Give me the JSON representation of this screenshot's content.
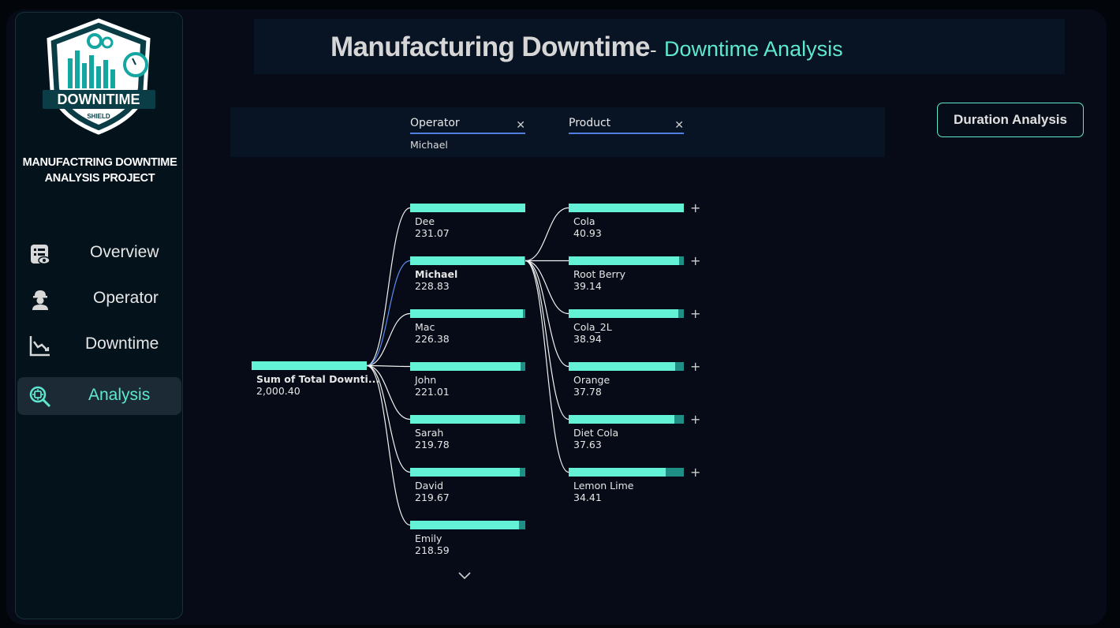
{
  "sidebar": {
    "logo": {
      "text": "DOWNITIME",
      "subtext": "SHIELD"
    },
    "project_title": "MANUFACTRING DOWNTIME\nANALYSIS PROJECT",
    "items": [
      {
        "label": "Overview",
        "icon": "report-icon",
        "active": false
      },
      {
        "label": "Operator",
        "icon": "worker-icon",
        "active": false
      },
      {
        "label": "Downtime",
        "icon": "line-chart-icon",
        "active": false
      },
      {
        "label": "Analysis",
        "icon": "analysis-search-icon",
        "active": true
      }
    ]
  },
  "header": {
    "title": "Manufacturing Downtime",
    "separator": "-",
    "subtitle": "Downtime Analysis"
  },
  "filters": {
    "operator": {
      "title": "Operator",
      "value": "Michael"
    },
    "product": {
      "title": "Product",
      "value": ""
    }
  },
  "duration_button": "Duration Analysis",
  "colors": {
    "accent": "#5ee8cf",
    "bar_fill": "#64f2d6",
    "bar_track": "#1f8f86",
    "selected_line": "#5b8ef0"
  },
  "chart_data": {
    "type": "decomposition_tree",
    "root": {
      "label": "Sum of Total Downti...",
      "value_text": "2,000.40",
      "value": 2000.4
    },
    "levels": [
      {
        "field": "Operator",
        "nodes": [
          {
            "label": "Dee",
            "value_text": "231.07",
            "value": 231.07
          },
          {
            "label": "Michael",
            "value_text": "228.83",
            "value": 228.83,
            "selected": true
          },
          {
            "label": "Mac",
            "value_text": "226.38",
            "value": 226.38
          },
          {
            "label": "John",
            "value_text": "221.01",
            "value": 221.01
          },
          {
            "label": "Sarah",
            "value_text": "219.78",
            "value": 219.78
          },
          {
            "label": "David",
            "value_text": "219.67",
            "value": 219.67
          },
          {
            "label": "Emily",
            "value_text": "218.59",
            "value": 218.59
          }
        ]
      },
      {
        "field": "Product",
        "nodes": [
          {
            "label": "Cola",
            "value_text": "40.93",
            "value": 40.93
          },
          {
            "label": "Root Berry",
            "value_text": "39.14",
            "value": 39.14
          },
          {
            "label": "Cola_2L",
            "value_text": "38.94",
            "value": 38.94
          },
          {
            "label": "Orange",
            "value_text": "37.78",
            "value": 37.78
          },
          {
            "label": "Diet Cola",
            "value_text": "37.63",
            "value": 37.63
          },
          {
            "label": "Lemon Lime",
            "value_text": "34.41",
            "value": 34.41
          }
        ]
      }
    ],
    "expand_symbol": "+"
  }
}
